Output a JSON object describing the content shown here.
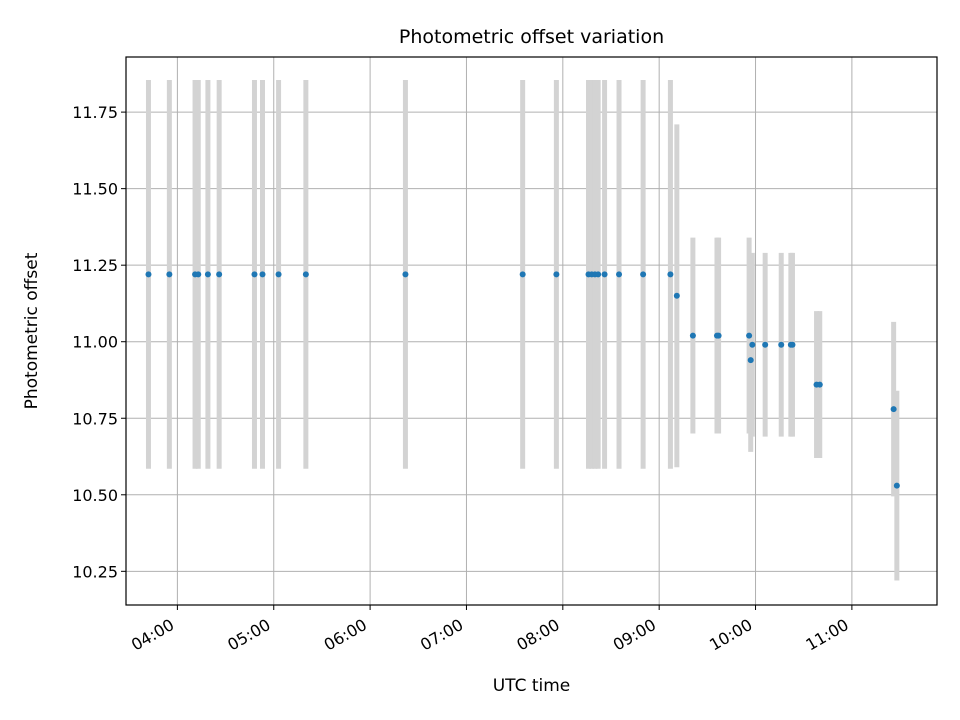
{
  "chart_data": {
    "type": "scatter",
    "title": "Photometric offset variation",
    "xlabel": "UTC time",
    "ylabel": "Photometric offset",
    "xlim": [
      "03:28",
      "11:53"
    ],
    "ylim": [
      10.14,
      11.93
    ],
    "grid": true,
    "xticks": [
      "04:00",
      "05:00",
      "06:00",
      "07:00",
      "08:00",
      "09:00",
      "10:00",
      "11:00"
    ],
    "yticks": [
      "10.25",
      "10.50",
      "10.75",
      "11.00",
      "11.25",
      "11.50",
      "11.75"
    ],
    "errorbar_color": "#d3d3d3",
    "point_color": "#1f77b4",
    "points": [
      {
        "x": "03:42",
        "y": 11.22,
        "err": 0.635
      },
      {
        "x": "03:55",
        "y": 11.22,
        "err": 0.635
      },
      {
        "x": "04:11",
        "y": 11.22,
        "err": 0.635
      },
      {
        "x": "04:13",
        "y": 11.22,
        "err": 0.635
      },
      {
        "x": "04:19",
        "y": 11.22,
        "err": 0.635
      },
      {
        "x": "04:26",
        "y": 11.22,
        "err": 0.635
      },
      {
        "x": "04:48",
        "y": 11.22,
        "err": 0.635
      },
      {
        "x": "04:53",
        "y": 11.22,
        "err": 0.635
      },
      {
        "x": "05:03",
        "y": 11.22,
        "err": 0.635
      },
      {
        "x": "05:20",
        "y": 11.22,
        "err": 0.635
      },
      {
        "x": "06:22",
        "y": 11.22,
        "err": 0.635
      },
      {
        "x": "07:35",
        "y": 11.22,
        "err": 0.635
      },
      {
        "x": "07:56",
        "y": 11.22,
        "err": 0.635
      },
      {
        "x": "08:16",
        "y": 11.22,
        "err": 0.635
      },
      {
        "x": "08:18",
        "y": 11.22,
        "err": 0.635
      },
      {
        "x": "08:20",
        "y": 11.22,
        "err": 0.635
      },
      {
        "x": "08:22",
        "y": 11.22,
        "err": 0.635
      },
      {
        "x": "08:26",
        "y": 11.22,
        "err": 0.635
      },
      {
        "x": "08:35",
        "y": 11.22,
        "err": 0.635
      },
      {
        "x": "08:50",
        "y": 11.22,
        "err": 0.635
      },
      {
        "x": "09:07",
        "y": 11.22,
        "err": 0.635
      },
      {
        "x": "09:11",
        "y": 11.15,
        "err": 0.56
      },
      {
        "x": "09:21",
        "y": 11.02,
        "err": 0.32
      },
      {
        "x": "09:36",
        "y": 11.02,
        "err": 0.32
      },
      {
        "x": "09:37",
        "y": 11.02,
        "err": 0.32
      },
      {
        "x": "09:56",
        "y": 11.02,
        "err": 0.32
      },
      {
        "x": "09:57",
        "y": 10.94,
        "err": 0.3
      },
      {
        "x": "09:58",
        "y": 10.99,
        "err": 0.3
      },
      {
        "x": "10:06",
        "y": 10.99,
        "err": 0.3
      },
      {
        "x": "10:16",
        "y": 10.99,
        "err": 0.3
      },
      {
        "x": "10:22",
        "y": 10.99,
        "err": 0.3
      },
      {
        "x": "10:23",
        "y": 10.99,
        "err": 0.3
      },
      {
        "x": "10:38",
        "y": 10.86,
        "err": 0.24
      },
      {
        "x": "10:40",
        "y": 10.86,
        "err": 0.24
      },
      {
        "x": "11:26",
        "y": 10.78,
        "err": 0.285
      },
      {
        "x": "11:28",
        "y": 10.53,
        "err": 0.31
      }
    ]
  }
}
